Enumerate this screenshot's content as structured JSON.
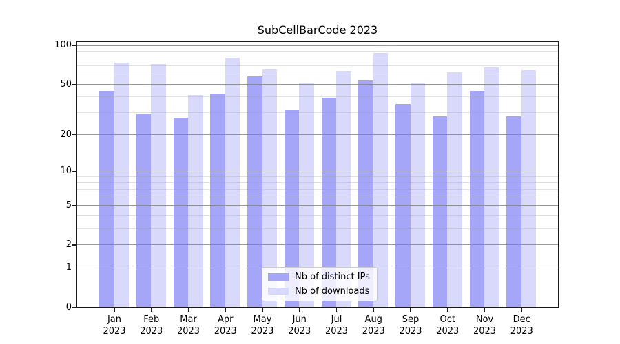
{
  "chart_data": {
    "type": "bar",
    "title": "SubCellBarCode 2023",
    "categories": [
      "Jan",
      "Feb",
      "Mar",
      "Apr",
      "May",
      "Jun",
      "Jul",
      "Aug",
      "Sep",
      "Oct",
      "Nov",
      "Dec"
    ],
    "x_year_suffix": "2023",
    "series": [
      {
        "name": "Nb of distinct IPs",
        "color": "#a6a6f8",
        "values": [
          44,
          29,
          27,
          42,
          57,
          31,
          39,
          53,
          35,
          28,
          44,
          28
        ]
      },
      {
        "name": "Nb of downloads",
        "color": "#d9d9fb",
        "values": [
          73,
          72,
          41,
          80,
          65,
          51,
          63,
          87,
          51,
          62,
          67,
          64
        ]
      }
    ],
    "yscale": "log1p",
    "ylim": [
      0,
      106
    ],
    "yticks": [
      0,
      1,
      2,
      5,
      10,
      20,
      50,
      100
    ],
    "minor_yticks": [
      3,
      4,
      6,
      7,
      8,
      9,
      30,
      40,
      60,
      70,
      80,
      90
    ],
    "grid": "horizontal",
    "legend_position": "lower center",
    "xlabel": "",
    "ylabel": ""
  },
  "colors": {
    "axis": "#1a1a1a",
    "major_grid": "#828282",
    "minor_grid": "#a0a0a0",
    "legend_border": "#cccccc"
  }
}
